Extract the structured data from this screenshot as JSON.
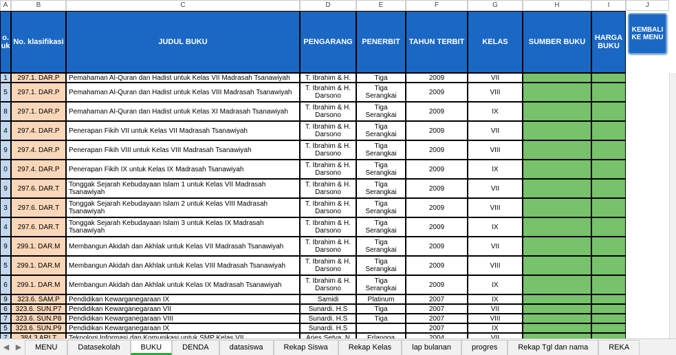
{
  "columns": {
    "labels": [
      "A",
      "B",
      "C",
      "D",
      "E",
      "F",
      "G",
      "H",
      "I",
      "J"
    ],
    "headers": {
      "A": "o.\nuk",
      "B": "No. klasifikasi",
      "C": "JUDUL BUKU",
      "D": "PENGARANG",
      "E": "PENERBIT",
      "F": "TAHUN TERBIT",
      "G": "KELAS",
      "H": "SUMBER BUKU",
      "I": "HARGA BUKU"
    }
  },
  "button": {
    "label": "KEMBALI KE MENU"
  },
  "colors": {
    "header_bg": "#1b68c4",
    "colA_bg": "#c3d8ef",
    "colB_bg": "#fad7b9",
    "green_bg": "#77c26a",
    "tab_active_underline": "#2aa936"
  },
  "rows": [
    {
      "h": "h14",
      "A": "1",
      "B": "297.1. DAR.P",
      "C": "Pemahaman Al-Quran dan Hadist untuk Kelas VII Madrasah Tsanawiyah",
      "D": "T. Ibrahim & H.",
      "E": "Tiga",
      "F": "2009",
      "G": "VII"
    },
    {
      "h": "h28",
      "A": "5",
      "B": "297.1. DAR.P",
      "C": "Pemahaman Al-Quran dan Hadist untuk Kelas VIII Madrasah Tsanawiyah",
      "D": "T. Ibrahim & H. Darsono",
      "E": "Tiga Serangkai",
      "F": "2009",
      "G": "VIII"
    },
    {
      "h": "h28",
      "A": "8",
      "B": "297.1. DAR.P",
      "C": "Pemahaman Al-Quran dan Hadist untuk Kelas XI Madrasah Tsanawiyah",
      "D": "T. Ibrahim & H. Darsono",
      "E": "Tiga Serangkai",
      "F": "2009",
      "G": "IX"
    },
    {
      "h": "h28",
      "A": "4",
      "B": "297.4. DAR.P",
      "C": "Penerapan Fikih VII untuk Kelas VII Madrasah Tsanawiyah",
      "D": "T. Ibrahim & H. Darsono",
      "E": "Tiga Serangkai",
      "F": "2009",
      "G": "VII"
    },
    {
      "h": "h28",
      "A": "9",
      "B": "297.4. DAR.P",
      "C": "Penerapan Fikih VIII untuk Kelas VIII Madrasah Tsanawiyah",
      "D": "T. Ibrahim & H. Darsono",
      "E": "Tiga Serangkai",
      "F": "2009",
      "G": "VIII"
    },
    {
      "h": "h28",
      "A": "0",
      "B": "297.4. DAR.P",
      "C": "Penerapan Fikih IX untuk Kelas IX Madrasah Tsanawiyah",
      "D": "T. Ibrahim & H. Darsono",
      "E": "Tiga Serangkai",
      "F": "2009",
      "G": "IX"
    },
    {
      "h": "h28",
      "A": "9",
      "B": "297.6. DAR.T",
      "C": "Tonggak Sejarah Kebudayaan Islam 1 untuk Kelas VII Madrasah Tsanawiyah",
      "D": "T. Ibrahim & H. Darsono",
      "E": "Tiga Serangkai",
      "F": "2009",
      "G": "VII"
    },
    {
      "h": "h28",
      "A": "3",
      "B": "297.6. DAR.T",
      "C": "Tonggak Sejarah Kebudayaan Islam 2 untuk Kelas VIII Madrasah Tsanawiyah",
      "D": "T. Ibrahim & H. Darsono",
      "E": "Tiga Serangkai",
      "F": "2009",
      "G": "VIII"
    },
    {
      "h": "h28",
      "A": "4",
      "B": "297.6. DAR.T",
      "C": "Tonggak Sejarah Kebudayaan Islam 3 untuk Kelas IX Madrasah Tsanawiyah",
      "D": "T. Ibrahim & H. Darsono",
      "E": "Tiga Serangkai",
      "F": "2009",
      "G": "IX"
    },
    {
      "h": "h28",
      "A": "9",
      "B": "299.1. DAR.M",
      "C": "Membangun Akidah dan Akhlak untuk Kelas VII Madrasah Tsanawiyah",
      "D": "T. Ibrahim & H. Darsono",
      "E": "Tiga Serangkai",
      "F": "2009",
      "G": "VII"
    },
    {
      "h": "h28",
      "A": "5",
      "B": "299.1. DAR.M",
      "C": "Membangun Akidah dan Akhlak untuk Kelas VIII Madrasah Tsanawiyah",
      "D": "T. Ibrahim & H. Darsono",
      "E": "Tiga Serangkai",
      "F": "2009",
      "G": "VIII"
    },
    {
      "h": "h28",
      "A": "6",
      "B": "299.1. DAR.M",
      "C": "Membangun Akidah dan Akhlak untuk Kelas IX Madrasah Tsanawiyah",
      "D": "T. Ibrahim & H. Darsono",
      "E": "Tiga Serangkai",
      "F": "2009",
      "G": "IX"
    },
    {
      "h": "h14",
      "A": "9",
      "B": "323.6. SAM.P",
      "C": "Pendidikan Kewarganegaraan IX",
      "D": "Samidi",
      "E": "Platinum",
      "F": "2007",
      "G": "IX"
    },
    {
      "h": "h14",
      "A": "6",
      "B": "323.6. SUN.P7",
      "C": "Pendidikan Kewarganegaraan VII",
      "D": "Sunardi. H.S",
      "E": "Tiga",
      "F": "2007",
      "G": "VII"
    },
    {
      "h": "h14",
      "A": "7",
      "B": "323.6. SUN.P8",
      "C": "Pendidikan Kewarganegaraan VIII",
      "D": "Sunardi. H.S",
      "E": "Tiga",
      "F": "2007",
      "G": "VIII"
    },
    {
      "h": "h14",
      "A": "5",
      "B": "323.6. SUN.P9",
      "C": "Pendidikan Kewarganegaraan IX",
      "D": "Sunardi. H.S",
      "E": "",
      "F": "2007",
      "G": "IX"
    },
    {
      "h": "h14",
      "A": "7",
      "B": "384.3  ARI.T",
      "C": "Teknologi Informasi dan Komunikasi untuk SMP Kelas VII",
      "D": "Aries Setya. N",
      "E": "Erlangga",
      "F": "2004",
      "G": "VII"
    }
  ],
  "tabs": {
    "items": [
      "MENU",
      "Datasekolah",
      "BUKU",
      "DENDA",
      "datasiswa",
      "Rekap Siswa",
      "Rekap Kelas",
      "lap bulanan",
      "progres",
      "Rekap Tgl dan nama",
      "REKA"
    ],
    "activeIndex": 2
  }
}
